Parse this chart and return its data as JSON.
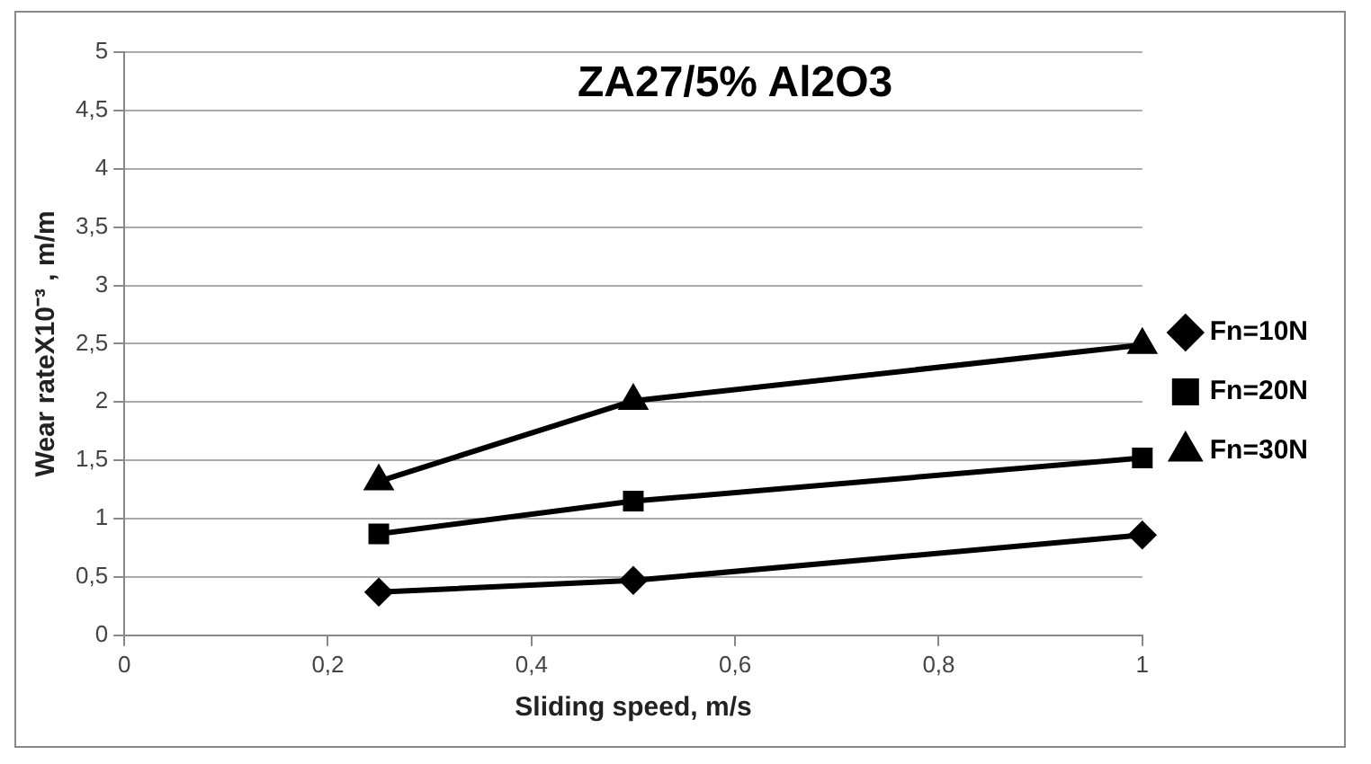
{
  "chart_data": {
    "type": "line",
    "title": "ZA27/5% Al2O3",
    "xlabel": "Sliding speed, m/s",
    "ylabel": "Wear rateX10⁻³ , m/m",
    "x": [
      0.25,
      0.5,
      1
    ],
    "series": [
      {
        "name": "Fn=10N",
        "color": "#000000",
        "marker": "diamond",
        "values": [
          0.37,
          0.47,
          0.86
        ]
      },
      {
        "name": "Fn=20N",
        "color": "#000000",
        "marker": "square",
        "values": [
          0.87,
          1.15,
          1.52
        ]
      },
      {
        "name": "Fn=30N",
        "color": "#000000",
        "marker": "triangle",
        "values": [
          1.32,
          2.01,
          2.49
        ]
      }
    ],
    "xlim": [
      0,
      1
    ],
    "xticks": [
      0,
      {
        "value": 0.2,
        "label": "0,2"
      },
      {
        "value": 0.4,
        "label": "0,4"
      },
      {
        "value": 0.6,
        "label": "0,6"
      },
      {
        "value": 0.8,
        "label": "0,8"
      },
      1
    ],
    "ylim": [
      0,
      5
    ],
    "yticks": [
      0,
      {
        "value": 0.5,
        "label": "0,5"
      },
      1,
      {
        "value": 1.5,
        "label": "1,5"
      },
      2,
      {
        "value": 2.5,
        "label": "2,5"
      },
      3,
      {
        "value": 3.5,
        "label": "3,5"
      },
      4,
      {
        "value": 4.5,
        "label": "4,5"
      },
      5
    ],
    "grid": "y",
    "legend": "right",
    "line_style": "solid"
  }
}
